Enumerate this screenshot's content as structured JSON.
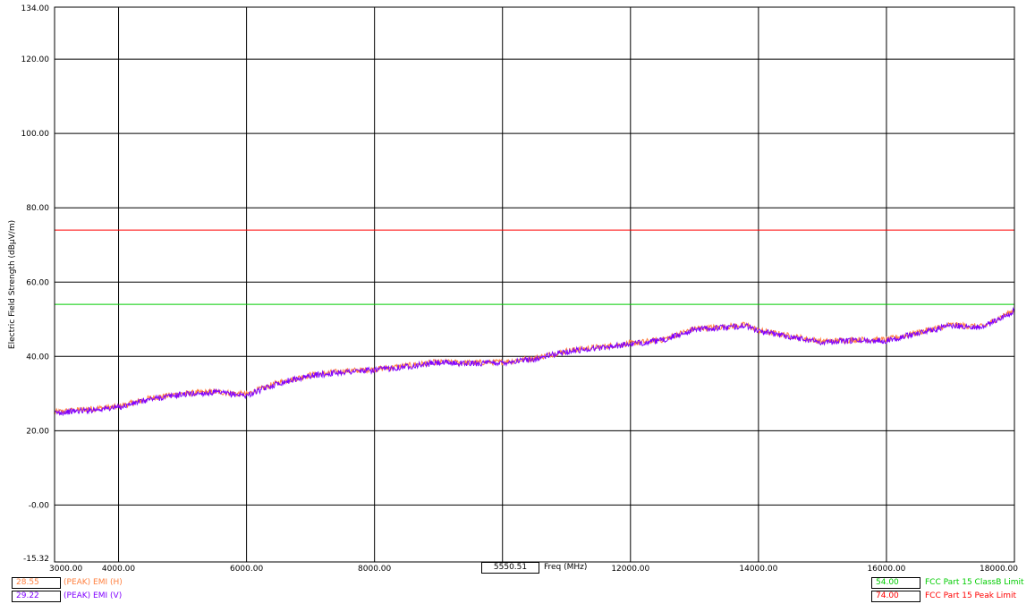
{
  "chart_data": {
    "type": "line",
    "xlabel": "Freq (MHz)",
    "ylabel": "Electric Field Strength (dBµV/m)",
    "xlim": [
      3000,
      18000
    ],
    "ylim": [
      -15.32,
      134
    ],
    "x_ticks": [
      "3000.00",
      "4000.00",
      "6000.00",
      "8000.00",
      "10000.00",
      "12000.00",
      "14000.00",
      "16000.00",
      "18000.00"
    ],
    "y_ticks": [
      "134.00",
      "120.00",
      "100.00",
      "80.00",
      "60.00",
      "40.00",
      "20.00",
      "-0.00",
      "-15.32"
    ],
    "grid": true,
    "cursor_freq": "5550.51",
    "series": [
      {
        "name": "(PEAK) EMI (H)",
        "color": "#ff8040",
        "cursor_value": "28.55",
        "x": [
          3000,
          3500,
          4000,
          4500,
          5000,
          5500,
          6000,
          6500,
          7000,
          7500,
          8000,
          8500,
          9000,
          9500,
          10000,
          10500,
          11000,
          11500,
          12000,
          12500,
          13000,
          13500,
          13800,
          14000,
          14500,
          15000,
          15500,
          16000,
          16500,
          17000,
          17500,
          18000
        ],
        "y": [
          25.0,
          25.8,
          26.5,
          28.8,
          30.0,
          30.5,
          29.8,
          33.0,
          35.0,
          36.0,
          36.5,
          37.5,
          38.5,
          38.3,
          38.5,
          39.5,
          41.5,
          42.5,
          43.5,
          44.5,
          47.5,
          48.0,
          48.5,
          47.0,
          45.5,
          44.0,
          44.5,
          44.5,
          46.5,
          48.5,
          48.0,
          52.5
        ]
      },
      {
        "name": "(PEAK) EMI (V)",
        "color": "#8000ff",
        "cursor_value": "29.22",
        "x": [
          3000,
          3500,
          4000,
          4500,
          5000,
          5500,
          6000,
          6500,
          7000,
          7500,
          8000,
          8500,
          9000,
          9500,
          10000,
          10500,
          11000,
          11500,
          12000,
          12500,
          13000,
          13500,
          13800,
          14000,
          14500,
          15000,
          15500,
          16000,
          16500,
          17000,
          17500,
          18000
        ],
        "y": [
          24.8,
          25.5,
          26.3,
          28.5,
          29.8,
          30.3,
          29.5,
          32.8,
          34.8,
          35.8,
          36.3,
          37.3,
          38.3,
          38.1,
          38.3,
          39.3,
          41.3,
          42.3,
          43.3,
          44.3,
          47.3,
          47.8,
          48.3,
          46.8,
          45.3,
          43.8,
          44.3,
          44.3,
          46.3,
          48.3,
          47.8,
          52.3
        ]
      }
    ],
    "limits": [
      {
        "name": "FCC Part 15 ClassB Limit",
        "value": 54,
        "label": "54.00",
        "color": "#00cc00"
      },
      {
        "name": "FCC Part 15 Peak Limit",
        "value": 74,
        "label": "74.00",
        "color": "#ff0000"
      }
    ]
  },
  "legend": {
    "left": [
      {
        "value": "28.55",
        "label": "(PEAK) EMI (H)",
        "color": "#ff8040"
      },
      {
        "value": "29.22",
        "label": "(PEAK) EMI (V)",
        "color": "#8000ff"
      }
    ],
    "right": [
      {
        "value": "54.00",
        "label": "FCC Part 15 ClassB Limit",
        "color": "#00cc00"
      },
      {
        "value": "74.00",
        "label": "FCC Part 15 Peak Limit",
        "color": "#ff0000"
      }
    ]
  }
}
